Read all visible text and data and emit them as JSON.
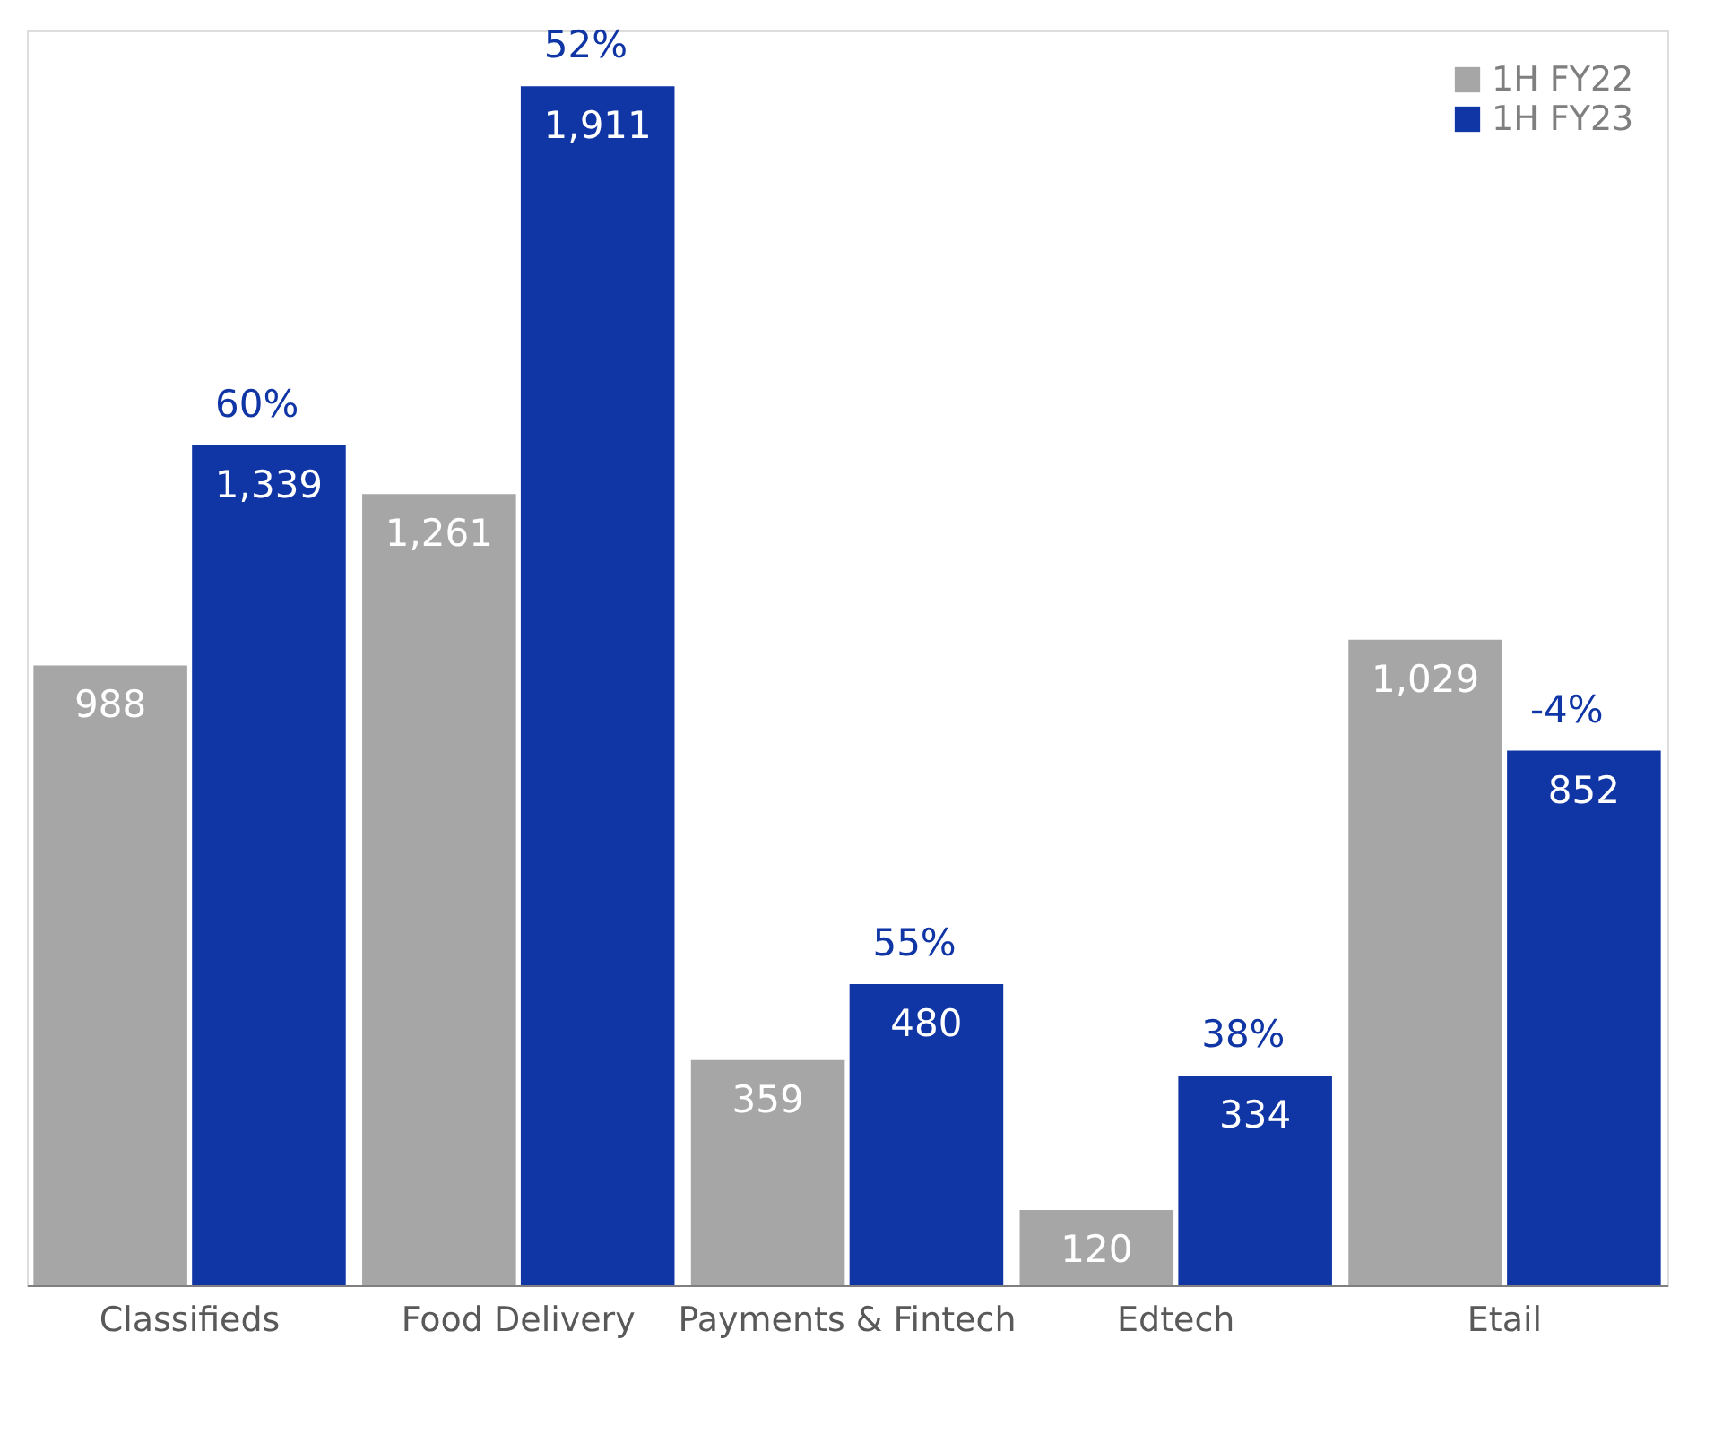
{
  "chart_data": {
    "type": "bar",
    "categories": [
      "Classifieds",
      "Food Delivery",
      "Payments & Fintech",
      "Edtech",
      "Etail"
    ],
    "series": [
      {
        "name": "1H FY22",
        "color": "#a6a6a6",
        "values": [
          988,
          1261,
          359,
          120,
          1029
        ],
        "value_labels": [
          "988",
          "1,261",
          "359",
          "120",
          "1,029"
        ]
      },
      {
        "name": "1H FY23",
        "color": "#1035a5",
        "values": [
          1339,
          1911,
          480,
          334,
          852
        ],
        "value_labels": [
          "1,339",
          "1,911",
          "480",
          "334",
          "852"
        ]
      }
    ],
    "ylim": [
      0,
      2000
    ],
    "tick_labels": "x",
    "legend": "top right",
    "grid": false,
    "annotations": [
      {
        "text": "60%",
        "x": "Classifieds",
        "y": 1339
      },
      {
        "text": "52%",
        "x": "Food Delivery",
        "y": 1911
      },
      {
        "text": "55%",
        "x": "Payments & Fintech",
        "y": 480
      },
      {
        "text": "38%",
        "x": "Edtech",
        "y": 334
      },
      {
        "text": "-4%",
        "x": "Etail",
        "y": 852
      }
    ]
  }
}
